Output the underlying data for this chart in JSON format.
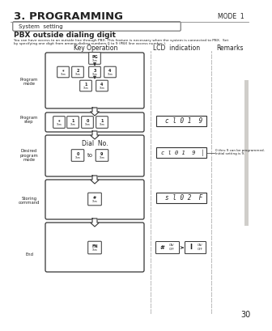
{
  "title": "3. PROGRAMMING",
  "mode_label": "MODE  1",
  "system_setting_label": "System  setting",
  "pbx_title": "PBX outside dialing digit",
  "desc1": "You can have access to an outside line through PBX. This feature is necessary when the system is connected to PBX.  Set",
  "desc2": "by specifying one digit from among dialing numbers 0 to 9 (PBX line access number ).",
  "col_key": "Key Operation",
  "col_lcd": "LCD  indication",
  "col_remarks": "Remarks",
  "row_labels": [
    "Program\nmode",
    "Program\nstep",
    "Desired\nprogram\nmode",
    "Storing\ncommand",
    "End"
  ],
  "lcd1": "c l 0 1  9",
  "lcd2": "c l 0 1  9  ▏",
  "lcd3": "s l 0 2  F",
  "remark1": "0 thru 9 can be programmed.",
  "remark2": "Initial setting is 9.",
  "page_number": "30",
  "bg_color": "#e8e6e3",
  "white": "#ffffff",
  "black": "#222222",
  "dark": "#333333"
}
